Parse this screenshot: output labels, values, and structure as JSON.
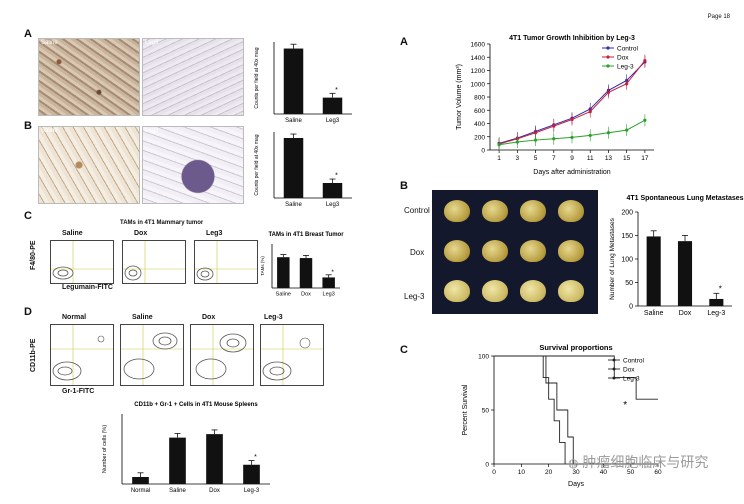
{
  "page_number": "Page 18",
  "watermark": "肿瘤细胞临床与研究",
  "left": {
    "panel_A": {
      "letter": "A",
      "img_labels": [
        "Saline",
        "Leg3"
      ],
      "ylabel": "Counts per field at 40x mag",
      "star": "*",
      "chart_data": {
        "type": "bar",
        "categories": [
          "Saline",
          "Leg3"
        ],
        "values": [
          100,
          25
        ],
        "ylim": [
          0,
          110
        ]
      }
    },
    "panel_B": {
      "letter": "B",
      "img_labels": [
        "Saline",
        "Leg3"
      ],
      "ylabel": "Counts per field at 40x mag",
      "star": "*",
      "chart_data": {
        "type": "bar",
        "categories": [
          "Saline",
          "Leg3"
        ],
        "values": [
          100,
          25
        ],
        "ylim": [
          0,
          110
        ]
      }
    },
    "panel_C": {
      "letter": "C",
      "title": "TAMs in 4T1 Mammary tumor",
      "columns": [
        "Saline",
        "Dox",
        "Leg3"
      ],
      "yaxis": "F4/80-PE",
      "xaxis": "Legumain-FITC",
      "bar_title": "TAMs in 4T1 Breast Tumor",
      "bar_ylabel": "TAMs (%)",
      "star": "*",
      "chart_data": {
        "type": "bar",
        "categories": [
          "Saline",
          "Dox",
          "Leg3"
        ],
        "values": [
          35,
          34,
          12
        ],
        "ylim": [
          0,
          50
        ]
      }
    },
    "panel_D": {
      "letter": "D",
      "columns": [
        "Normal",
        "Saline",
        "Dox",
        "Leg-3"
      ],
      "yaxis": "CD11b-PE",
      "xaxis": "Gr-1-FITC",
      "bar_title": "CD11b + Gr-1 + Cells in 4T1 Mouse Spleens",
      "bar_ylabel": "Number of cells (%)",
      "star": "*",
      "chart_data": {
        "type": "bar",
        "categories": [
          "Normal",
          "Saline",
          "Dox",
          "Leg-3"
        ],
        "values": [
          8,
          53,
          57,
          22
        ],
        "ylim": [
          0,
          80
        ]
      }
    }
  },
  "right": {
    "panel_A": {
      "letter": "A",
      "chart_data": {
        "type": "line",
        "title": "4T1 Tumor Growth Inhibition by Leg-3",
        "ylabel": "Tumor Volume (mm³)",
        "xlabel": "Days after administration",
        "x": [
          1,
          3,
          5,
          7,
          9,
          11,
          13,
          15,
          17
        ],
        "xlim": [
          0,
          18
        ],
        "ylim": [
          0,
          1600
        ],
        "yticks": [
          0,
          200,
          400,
          600,
          800,
          1000,
          1200,
          1400,
          1600
        ],
        "series": [
          {
            "name": "Control",
            "color": "#2b2bb0",
            "values": [
              100,
              180,
              280,
              380,
              480,
              620,
              900,
              1050,
              1330
            ]
          },
          {
            "name": "Dox",
            "color": "#c8203a",
            "values": [
              90,
              170,
              260,
              360,
              460,
              580,
              870,
              1000,
              1350
            ]
          },
          {
            "name": "Leg-3",
            "color": "#2aa02a",
            "values": [
              80,
              120,
              150,
              170,
              190,
              220,
              260,
              300,
              450
            ]
          }
        ]
      }
    },
    "panel_B": {
      "letter": "B",
      "row_labels": [
        "Control",
        "Dox",
        "Leg-3"
      ],
      "star": "*",
      "chart_data": {
        "type": "bar",
        "title": "4T1 Spontaneous Lung Metastases",
        "ylabel": "Number of Lung Metastases",
        "categories": [
          "Saline",
          "Dox",
          "Leg-3"
        ],
        "values": [
          148,
          138,
          15
        ],
        "ylim": [
          0,
          200
        ],
        "yticks": [
          0,
          50,
          100,
          150,
          200
        ]
      }
    },
    "panel_C": {
      "letter": "C",
      "star": "*",
      "chart_data": {
        "type": "line",
        "title": "Survival proportions",
        "ylabel": "Percent Survival",
        "xlabel": "Days",
        "xlim": [
          0,
          60
        ],
        "ylim": [
          0,
          100
        ],
        "xticks": [
          0,
          10,
          20,
          30,
          40,
          50,
          60
        ],
        "yticks": [
          0,
          50,
          100
        ],
        "series": [
          {
            "name": "Control",
            "steps": [
              [
                0,
                100
              ],
              [
                18,
                100
              ],
              [
                18,
                80
              ],
              [
                20,
                80
              ],
              [
                20,
                60
              ],
              [
                22,
                60
              ],
              [
                22,
                40
              ],
              [
                24,
                40
              ],
              [
                24,
                20
              ],
              [
                26,
                20
              ],
              [
                26,
                0
              ]
            ]
          },
          {
            "name": "Dox",
            "steps": [
              [
                0,
                100
              ],
              [
                19,
                100
              ],
              [
                19,
                75
              ],
              [
                23,
                75
              ],
              [
                23,
                50
              ],
              [
                27,
                50
              ],
              [
                27,
                25
              ],
              [
                29,
                25
              ],
              [
                29,
                0
              ]
            ]
          },
          {
            "name": "Leg-3",
            "steps": [
              [
                0,
                100
              ],
              [
                44,
                100
              ],
              [
                44,
                80
              ],
              [
                52,
                80
              ],
              [
                52,
                60
              ],
              [
                60,
                60
              ]
            ]
          }
        ]
      }
    }
  }
}
